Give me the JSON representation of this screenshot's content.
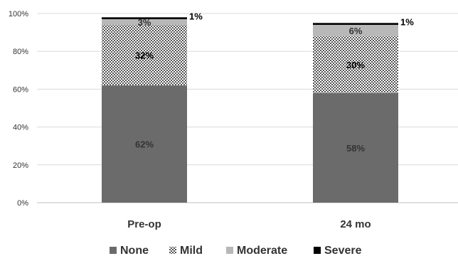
{
  "chart_data": {
    "type": "bar",
    "stacked": true,
    "categories": [
      "Pre-op",
      "24 mo"
    ],
    "series": [
      {
        "name": "None",
        "values": [
          62,
          58
        ],
        "labels": [
          "62%",
          "58%"
        ],
        "color": "#6b6b6b",
        "pattern": "solid",
        "label_color": "#333333"
      },
      {
        "name": "Mild",
        "values": [
          32,
          30
        ],
        "labels": [
          "32%",
          "30%"
        ],
        "color": "#6b6b6b",
        "pattern": "dots",
        "label_color": "#000000"
      },
      {
        "name": "Moderate",
        "values": [
          3,
          6
        ],
        "labels": [
          "3%",
          "6%"
        ],
        "color": "#b8b8b8",
        "pattern": "solid",
        "label_color": "#333333"
      },
      {
        "name": "Severe",
        "values": [
          1,
          1
        ],
        "labels": [
          "1%",
          "1%"
        ],
        "color": "#000000",
        "pattern": "solid",
        "label_color": "#000000"
      }
    ],
    "y_ticks": [
      "0%",
      "20%",
      "40%",
      "60%",
      "80%",
      "100%"
    ],
    "ylim": [
      0,
      100
    ],
    "grid": true,
    "legend": "bottom"
  }
}
